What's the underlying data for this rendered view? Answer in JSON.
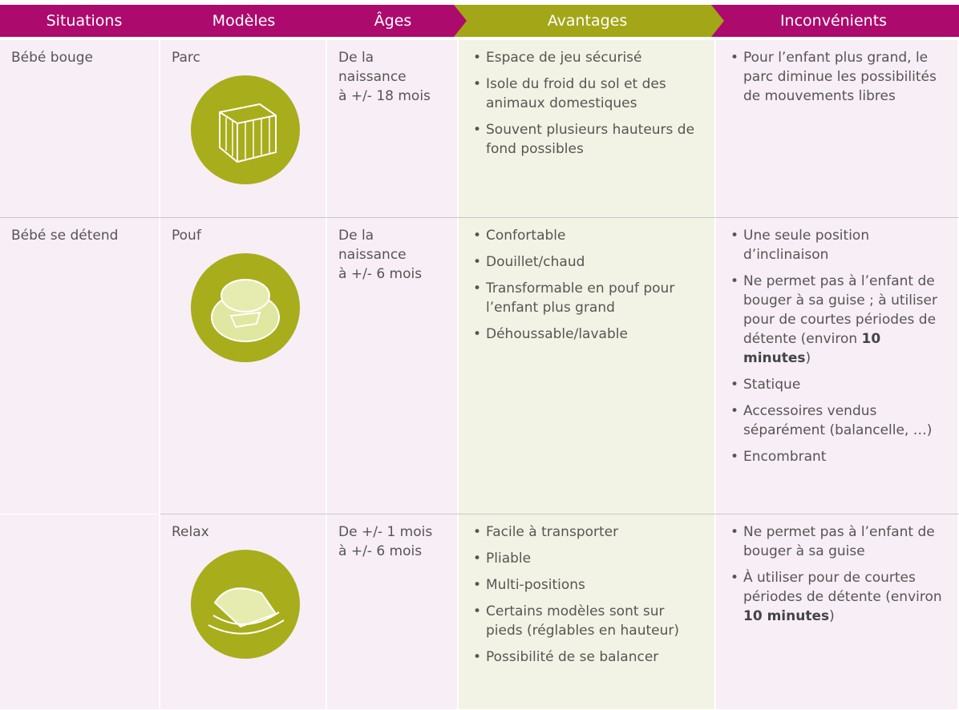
{
  "header": [
    "Situations",
    "Modèles",
    "Âges",
    "Avantages",
    "Inconvénients"
  ],
  "rows": [
    {
      "situation": "Bébé bouge",
      "model": "Parc",
      "ages": [
        "De la",
        "naissance",
        "à +/- 18 mois"
      ],
      "avantages": [
        [
          "Espace de jeu sécurisé"
        ],
        [
          "Isole du froid du sol et des animaux domestiques"
        ],
        [
          "Souvent plusieurs hauteurs de fond possibles"
        ]
      ],
      "inconvenients": [
        [
          "Pour l’enfant plus grand, le parc diminue les possibilités de mouvements libres"
        ]
      ]
    },
    {
      "situation": "Bébé se détend",
      "model": "Pouf",
      "ages": [
        "De la",
        "naissance",
        "à +/- 6 mois"
      ],
      "avantages": [
        [
          "Confortable"
        ],
        [
          "Douillet/chaud"
        ],
        [
          "Transformable en pouf pour l’enfant plus grand"
        ],
        [
          "Déhoussable/lavable"
        ]
      ],
      "inconvenients": [
        [
          "Une seule position d’inclinaison"
        ],
        [
          "Ne permet pas à l’enfant de bouger à sa guise ; à utiliser pour de courtes périodes de détente (environ ",
          {
            "bold": "10 minutes"
          },
          ")"
        ],
        [
          "Statique"
        ],
        [
          "Accessoires vendus séparément (balancelle, …)"
        ],
        [
          "Encombrant"
        ]
      ]
    },
    {
      "model": "Relax",
      "ages": [
        "De +/- 1 mois",
        "à +/- 6 mois"
      ],
      "avantages": [
        [
          "Facile à transporter"
        ],
        [
          "Pliable"
        ],
        [
          "Multi-positions"
        ],
        [
          "Certains modèles sont sur pieds (réglables en hauteur)"
        ],
        [
          "Possibilité de se balancer"
        ]
      ],
      "inconvenients": [
        [
          "Ne permet pas à l’enfant de bouger à sa guise"
        ],
        [
          "À utiliser pour de courtes périodes de détente (environ ",
          {
            "bold": "10 minutes"
          },
          ")"
        ]
      ]
    }
  ]
}
